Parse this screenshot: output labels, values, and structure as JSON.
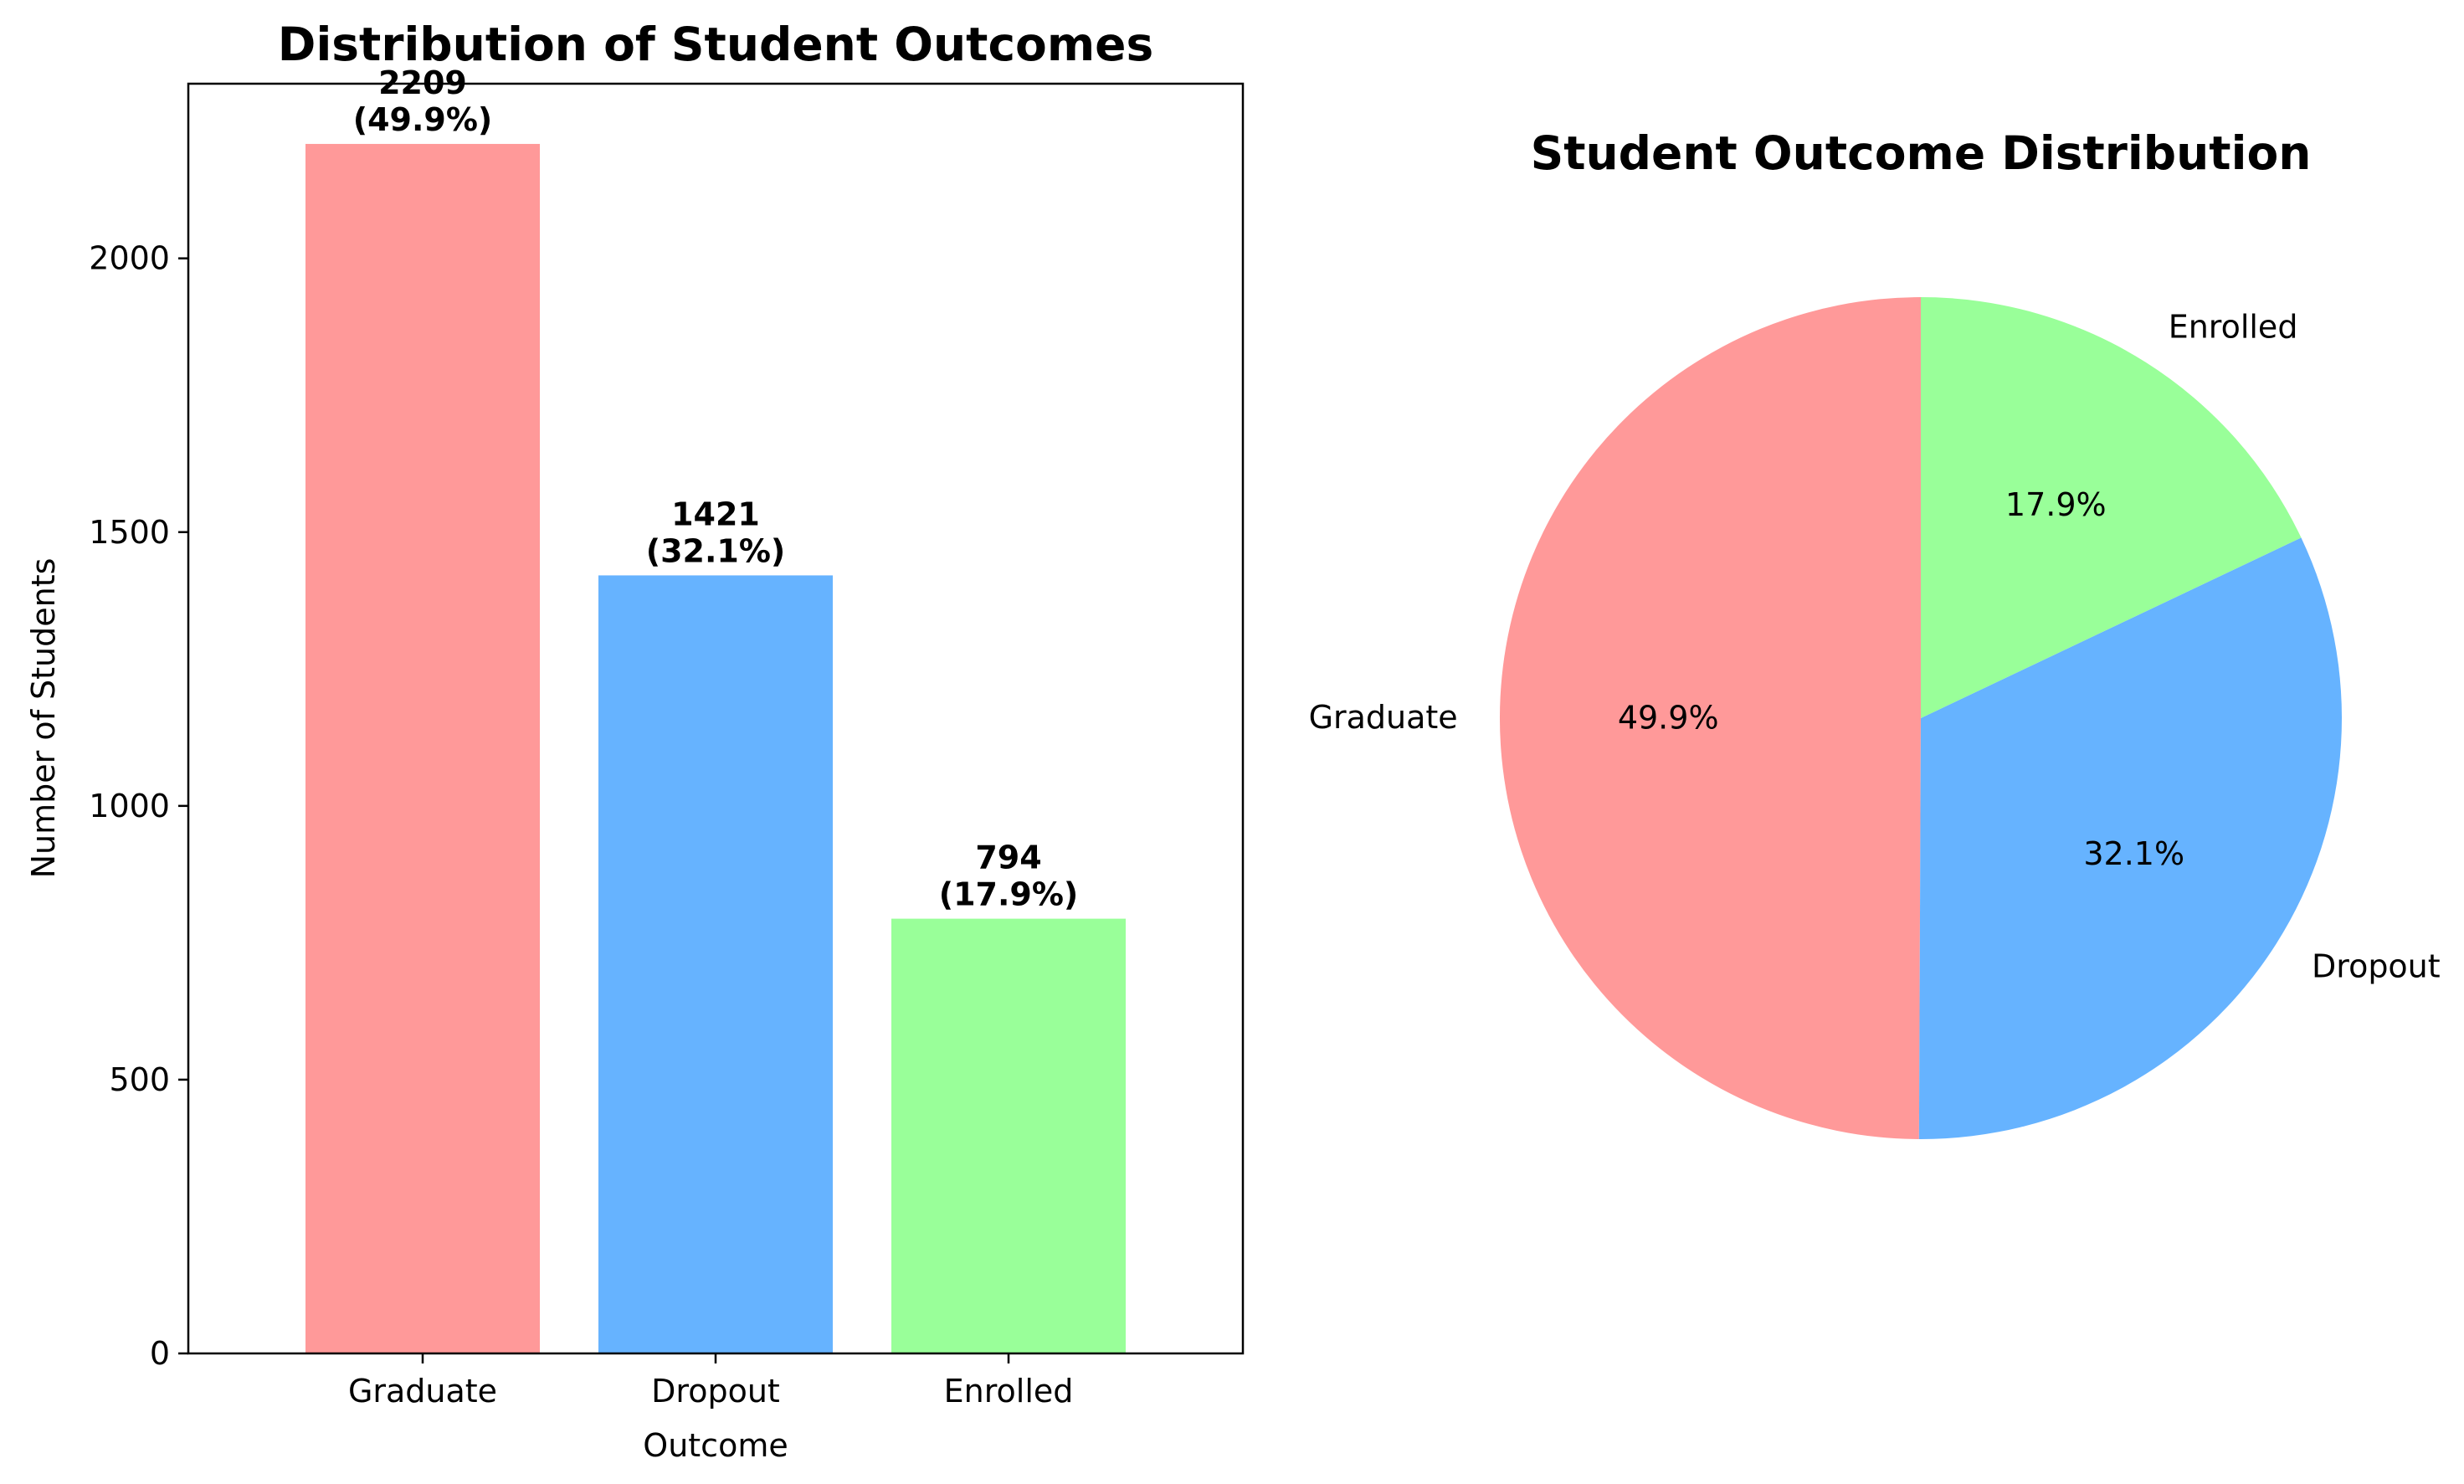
{
  "chart_data": [
    {
      "type": "bar",
      "title": "Distribution of Student Outcomes",
      "xlabel": "Outcome",
      "ylabel": "Number of Students",
      "categories": [
        "Graduate",
        "Dropout",
        "Enrolled"
      ],
      "values": [
        2209,
        1421,
        794
      ],
      "value_labels": [
        "2209",
        "1421",
        "794"
      ],
      "percent_labels": [
        "(49.9%)",
        "(32.1%)",
        "(17.9%)"
      ],
      "colors": [
        "#ff9999",
        "#66b3ff",
        "#99ff99"
      ],
      "ylim": [
        0,
        2319
      ],
      "yticks": [
        0,
        500,
        1000,
        1500,
        2000
      ],
      "ytick_labels": [
        "0",
        "500",
        "1000",
        "1500",
        "2000"
      ],
      "grid": false
    },
    {
      "type": "pie",
      "title": "Student Outcome Distribution",
      "categories": [
        "Graduate",
        "Dropout",
        "Enrolled"
      ],
      "values": [
        2209,
        1421,
        794
      ],
      "percent_labels": [
        "49.9%",
        "32.1%",
        "17.9%"
      ],
      "colors": [
        "#ff9999",
        "#66b3ff",
        "#99ff99"
      ],
      "start_angle": 90
    }
  ]
}
